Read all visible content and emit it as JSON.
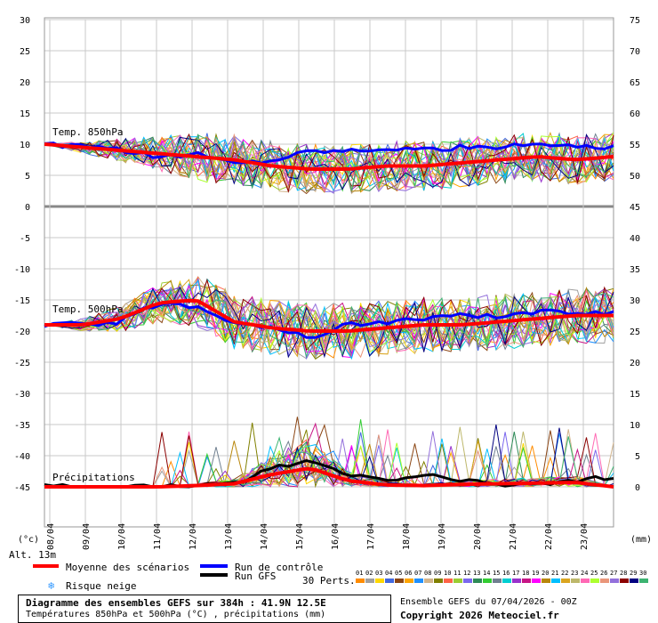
{
  "chart_data": [
    {
      "type": "line",
      "title": "Temp. 850hPa",
      "ylabel_left": "(°C)",
      "ylim": [
        0,
        30
      ],
      "x": [
        "08/04",
        "09/04",
        "10/04",
        "11/04",
        "12/04",
        "13/04",
        "14/04",
        "15/04",
        "16/04",
        "17/04",
        "18/04",
        "19/04",
        "20/04",
        "21/04",
        "22/04",
        "23/04"
      ],
      "series": [
        {
          "name": "Moyenne des scénarios",
          "values": [
            10,
            9.5,
            9,
            8.5,
            8,
            7.5,
            6.5,
            6,
            6,
            6.5,
            6.5,
            7,
            7.5,
            8,
            7.5,
            8
          ]
        },
        {
          "name": "Run de contrôle",
          "values": [
            10,
            9.5,
            9,
            8,
            8.5,
            7,
            7.5,
            9,
            9,
            9.5,
            9,
            9.5,
            9.5,
            10,
            9.5,
            9.5
          ]
        }
      ]
    },
    {
      "type": "line",
      "title": "Temp. 500hPa",
      "ylim": [
        -30,
        0
      ],
      "x": [
        "08/04",
        "09/04",
        "10/04",
        "11/04",
        "12/04",
        "13/04",
        "14/04",
        "15/04",
        "16/04",
        "17/04",
        "18/04",
        "19/04",
        "20/04",
        "21/04",
        "22/04",
        "23/04"
      ],
      "series": [
        {
          "name": "Moyenne des scénarios",
          "values": [
            -19,
            -19,
            -18,
            -15.5,
            -15,
            -18.5,
            -19.5,
            -20,
            -20,
            -19.5,
            -19,
            -19,
            -18.5,
            -18,
            -17.5,
            -17.5
          ]
        },
        {
          "name": "Run de contrôle",
          "values": [
            -19,
            -19,
            -18.5,
            -15.5,
            -16,
            -18.5,
            -19.5,
            -21,
            -19,
            -18.5,
            -18,
            -17.5,
            -17.5,
            -17,
            -17,
            -17
          ]
        }
      ]
    },
    {
      "type": "line",
      "title": "Précipitations",
      "ylabel_right": "(mm)",
      "ylim": [
        0,
        10
      ],
      "x": [
        "08/04",
        "09/04",
        "10/04",
        "11/04",
        "12/04",
        "13/04",
        "14/04",
        "15/04",
        "16/04",
        "17/04",
        "18/04",
        "19/04",
        "20/04",
        "21/04",
        "22/04",
        "23/04"
      ],
      "series": [
        {
          "name": "Moyenne des scénarios",
          "values": [
            0,
            0,
            0,
            0,
            0.2,
            0.5,
            2,
            3,
            1,
            0.3,
            0.2,
            0.4,
            0.5,
            0.6,
            0.7,
            0
          ]
        },
        {
          "name": "Run GFS",
          "values": [
            0,
            0,
            0,
            0,
            0,
            0.5,
            3,
            4,
            2,
            1,
            2,
            1,
            0.5,
            0.5,
            1,
            1.5
          ]
        }
      ]
    }
  ],
  "axes": {
    "left_ticks": [
      "30",
      "25",
      "20",
      "15",
      "10",
      "5",
      "0",
      "-5",
      "-10",
      "-15",
      "-20",
      "-25",
      "-30",
      "-35",
      "-40",
      "-45"
    ],
    "right_ticks": [
      "75",
      "70",
      "65",
      "60",
      "55",
      "50",
      "45",
      "40",
      "35",
      "30",
      "25",
      "20",
      "15",
      "10",
      "5",
      "0"
    ],
    "x_ticks": [
      "08/04",
      "09/04",
      "10/04",
      "11/04",
      "12/04",
      "13/04",
      "14/04",
      "15/04",
      "16/04",
      "17/04",
      "18/04",
      "19/04",
      "20/04",
      "21/04",
      "22/04",
      "23/04"
    ],
    "unit_left": "(°c)",
    "unit_right": "(mm)",
    "first_date": "08/04",
    "alt_label": "Alt. 13m"
  },
  "labels": {
    "t850": "Temp. 850hPa",
    "t500": "Temp. 500hPa",
    "precip": "Précipitations"
  },
  "legend": {
    "mean": "Moyenne des scénarios",
    "control": "Run de contrôle",
    "gfs": "Run GFS",
    "snow": "Risque neige",
    "perts": "30 Perts.",
    "pert_ids": [
      "01",
      "02",
      "03",
      "04",
      "05",
      "06",
      "07",
      "08",
      "09",
      "10",
      "11",
      "12",
      "13",
      "14",
      "15",
      "16",
      "17",
      "18",
      "19",
      "20",
      "21",
      "22",
      "23",
      "24",
      "25",
      "26",
      "27",
      "28",
      "29",
      "30"
    ],
    "pert_colors": [
      "#ff8c00",
      "#a0a0a0",
      "#ffd700",
      "#4169e1",
      "#8b4513",
      "#ffa500",
      "#1e90ff",
      "#d2b48c",
      "#808000",
      "#ff6347",
      "#9acd32",
      "#7b68ee",
      "#2e8b57",
      "#32cd32",
      "#708090",
      "#00ced1",
      "#9932cc",
      "#c71585",
      "#ff00ff",
      "#b8860b",
      "#00bfff",
      "#daa520",
      "#bdb76b",
      "#ff69b4",
      "#adff2f",
      "#e9967a",
      "#9370db",
      "#8b0000",
      "#000080",
      "#3cb371"
    ],
    "colors": {
      "mean": "#ff0000",
      "control": "#0000ff",
      "gfs": "#000000",
      "snow": "#3399ff"
    }
  },
  "footer": {
    "title": "Diagramme des ensembles GEFS sur 384h : 41.9N 12.5E",
    "subtitle": "Températures 850hPa et 500hPa (°C) , précipitations (mm)",
    "run": "Ensemble GEFS du 07/04/2026 - 00Z",
    "copyright": "Copyright 2026 Meteociel.fr"
  }
}
